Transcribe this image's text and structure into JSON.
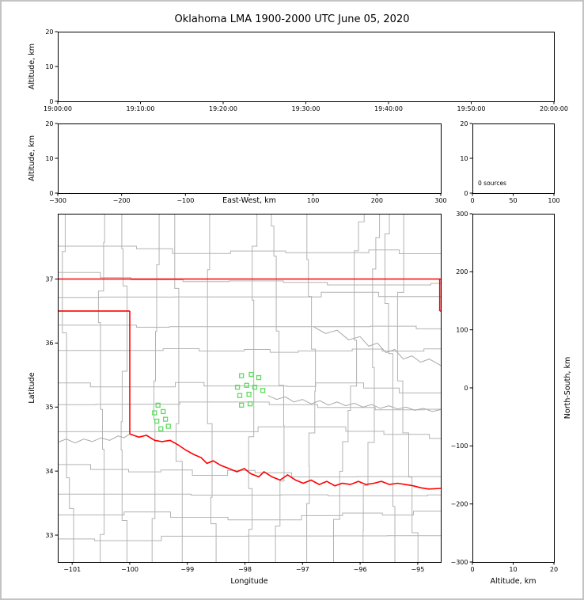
{
  "title": "Oklahoma LMA 1900-2000 UTC June 05, 2020",
  "colors": {
    "frame": "#000000",
    "text": "#000000",
    "county": "#b3b3b3",
    "river": "#a8a8a8",
    "state_border": "#ff0000",
    "station": "#5fdc5f",
    "background": "#ffffff",
    "outer_border": "#c3c3c3"
  },
  "chart_data": [
    {
      "id": "time_height",
      "type": "scatter",
      "xlabel": "",
      "ylabel": "Altitude, km",
      "xlim": [
        0,
        3600
      ],
      "xticks": [
        0,
        600,
        1200,
        1800,
        2400,
        3000,
        3600
      ],
      "xtick_labels": [
        "19:00:00",
        "19:10:00",
        "19:20:00",
        "19:30:00",
        "19:40:00",
        "19:50:00",
        "20:00:00"
      ],
      "ylim": [
        0,
        20
      ],
      "yticks": [
        0,
        10,
        20
      ],
      "ytick_labels": [
        "0",
        "10",
        "20"
      ],
      "points": []
    },
    {
      "id": "ew_height",
      "type": "scatter",
      "xlabel": "East-West, km",
      "ylabel": "Altitude, km",
      "xlim": [
        -300,
        300
      ],
      "xticks": [
        -300,
        -200,
        -100,
        0,
        100,
        200,
        300
      ],
      "xtick_labels": [
        "−300",
        "−200",
        "−100",
        "",
        "100",
        "200",
        "300"
      ],
      "ylim": [
        0,
        20
      ],
      "yticks": [
        0,
        10,
        20
      ],
      "ytick_labels": [
        "0",
        "10",
        "20"
      ],
      "points": []
    },
    {
      "id": "alt_histogram",
      "type": "line",
      "xlabel": "",
      "ylabel": "",
      "xlim": [
        0,
        100
      ],
      "xticks": [
        0,
        50,
        100
      ],
      "xtick_labels": [
        "0",
        "50",
        "100"
      ],
      "ylim": [
        0,
        20
      ],
      "yticks": [
        0,
        10,
        20
      ],
      "ytick_labels": [
        "0",
        "10",
        "20"
      ],
      "annotation": "0 sources",
      "points": []
    },
    {
      "id": "plan_map",
      "type": "map-scatter",
      "xlabel": "Longitude",
      "ylabel": "Latitude",
      "xlim": [
        -101.25,
        -94.6
      ],
      "xticks": [
        -101,
        -100,
        -99,
        -98,
        -97,
        -96,
        -95
      ],
      "xtick_labels": [
        "−101",
        "−100",
        "−99",
        "−98",
        "−97",
        "−96",
        "−95"
      ],
      "ylim": [
        32.58,
        38.02
      ],
      "yticks": [
        33,
        34,
        35,
        36,
        37
      ],
      "ytick_labels": [
        "33",
        "34",
        "35",
        "36",
        "37"
      ],
      "points": [],
      "stations": [
        [
          -98.06,
          35.49
        ],
        [
          -97.89,
          35.51
        ],
        [
          -97.76,
          35.46
        ],
        [
          -98.13,
          35.31
        ],
        [
          -97.97,
          35.34
        ],
        [
          -97.83,
          35.31
        ],
        [
          -97.69,
          35.26
        ],
        [
          -98.09,
          35.18
        ],
        [
          -97.93,
          35.2
        ],
        [
          -98.06,
          35.03
        ],
        [
          -97.91,
          35.05
        ],
        [
          -99.51,
          35.03
        ],
        [
          -99.57,
          34.91
        ],
        [
          -99.42,
          34.93
        ],
        [
          -99.53,
          34.78
        ],
        [
          -99.38,
          34.81
        ],
        [
          -99.46,
          34.66
        ],
        [
          -99.33,
          34.7
        ]
      ],
      "state_border": [
        [
          [
            -101.25,
            37.0
          ],
          [
            -94.6,
            37.0
          ]
        ],
        [
          [
            -94.618,
            37.0
          ],
          [
            -94.618,
            36.5
          ]
        ],
        [
          [
            -94.618,
            36.5
          ],
          [
            -94.5,
            36.5
          ]
        ],
        [
          [
            -101.25,
            36.5
          ],
          [
            -100.0,
            36.5
          ]
        ],
        [
          [
            -100.0,
            36.5
          ],
          [
            -100.0,
            34.58
          ]
        ],
        [
          [
            -100.0,
            34.58
          ],
          [
            -99.84,
            34.53
          ],
          [
            -99.71,
            34.56
          ],
          [
            -99.57,
            34.48
          ],
          [
            -99.44,
            34.46
          ],
          [
            -99.3,
            34.48
          ],
          [
            -99.16,
            34.41
          ],
          [
            -99.03,
            34.33
          ],
          [
            -98.89,
            34.26
          ],
          [
            -98.76,
            34.21
          ],
          [
            -98.66,
            34.12
          ],
          [
            -98.55,
            34.16
          ],
          [
            -98.42,
            34.09
          ],
          [
            -98.28,
            34.04
          ],
          [
            -98.14,
            33.99
          ],
          [
            -98.01,
            34.04
          ],
          [
            -97.9,
            33.96
          ],
          [
            -97.76,
            33.91
          ],
          [
            -97.67,
            33.99
          ],
          [
            -97.53,
            33.91
          ],
          [
            -97.39,
            33.86
          ],
          [
            -97.26,
            33.94
          ],
          [
            -97.12,
            33.86
          ],
          [
            -96.99,
            33.81
          ],
          [
            -96.85,
            33.86
          ],
          [
            -96.71,
            33.79
          ],
          [
            -96.58,
            33.84
          ],
          [
            -96.44,
            33.77
          ],
          [
            -96.31,
            33.81
          ],
          [
            -96.17,
            33.79
          ],
          [
            -96.03,
            33.84
          ],
          [
            -95.9,
            33.79
          ],
          [
            -95.76,
            33.81
          ],
          [
            -95.63,
            33.84
          ],
          [
            -95.49,
            33.79
          ],
          [
            -95.35,
            33.81
          ],
          [
            -95.22,
            33.79
          ],
          [
            -95.08,
            33.77
          ],
          [
            -94.95,
            33.74
          ],
          [
            -94.81,
            33.72
          ],
          [
            -94.6,
            33.73
          ]
        ]
      ],
      "rivers": [
        [
          [
            -101.25,
            34.45
          ],
          [
            -101.1,
            34.5
          ],
          [
            -100.95,
            34.44
          ],
          [
            -100.8,
            34.5
          ],
          [
            -100.65,
            34.46
          ],
          [
            -100.5,
            34.52
          ],
          [
            -100.35,
            34.48
          ],
          [
            -100.2,
            34.55
          ],
          [
            -100.1,
            34.52
          ],
          [
            -100.0,
            34.58
          ]
        ],
        [
          [
            -97.6,
            35.18
          ],
          [
            -97.45,
            35.12
          ],
          [
            -97.3,
            35.16
          ],
          [
            -97.15,
            35.08
          ],
          [
            -97.0,
            35.12
          ],
          [
            -96.85,
            35.05
          ],
          [
            -96.7,
            35.1
          ],
          [
            -96.55,
            35.03
          ],
          [
            -96.4,
            35.08
          ],
          [
            -96.25,
            35.02
          ],
          [
            -96.1,
            35.06
          ],
          [
            -95.95,
            35.0
          ],
          [
            -95.8,
            35.04
          ],
          [
            -95.65,
            34.98
          ],
          [
            -95.5,
            35.02
          ],
          [
            -95.35,
            34.97
          ],
          [
            -95.2,
            35.0
          ],
          [
            -95.05,
            34.95
          ],
          [
            -94.9,
            34.98
          ],
          [
            -94.75,
            34.93
          ],
          [
            -94.6,
            34.96
          ]
        ],
        [
          [
            -96.8,
            36.25
          ],
          [
            -96.6,
            36.15
          ],
          [
            -96.4,
            36.2
          ],
          [
            -96.2,
            36.05
          ],
          [
            -96.0,
            36.1
          ],
          [
            -95.85,
            35.95
          ],
          [
            -95.7,
            36.0
          ],
          [
            -95.55,
            35.85
          ],
          [
            -95.4,
            35.9
          ],
          [
            -95.25,
            35.75
          ],
          [
            -95.1,
            35.8
          ],
          [
            -94.95,
            35.7
          ],
          [
            -94.8,
            35.75
          ],
          [
            -94.6,
            35.65
          ]
        ]
      ]
    },
    {
      "id": "ns_height",
      "type": "scatter",
      "xlabel": "Altitude, km",
      "ylabel": "North-South, km",
      "xlim": [
        0,
        20
      ],
      "xticks": [
        0,
        10,
        20
      ],
      "xtick_labels": [
        "0",
        "10",
        "20"
      ],
      "ylim": [
        -300,
        300
      ],
      "yticks": [
        -300,
        -200,
        -100,
        0,
        100,
        200,
        300
      ],
      "ytick_labels": [
        "−300",
        "−200",
        "−100",
        "0",
        "100",
        "200",
        "300"
      ],
      "points": []
    }
  ]
}
